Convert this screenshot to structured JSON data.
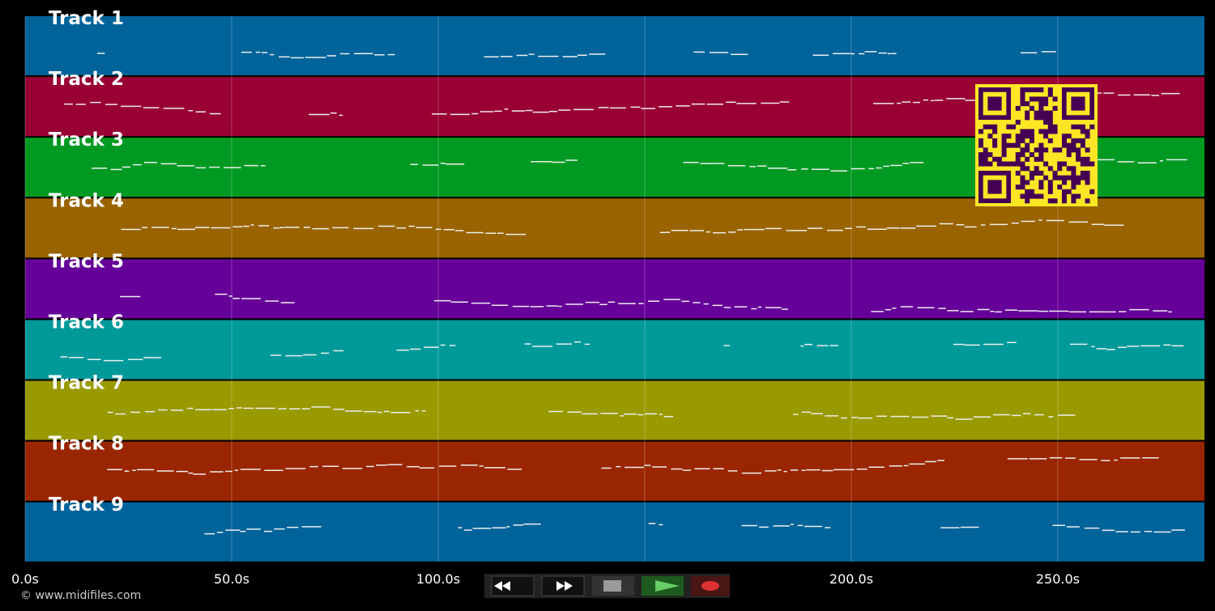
{
  "tracks": [
    {
      "label": "Track 1",
      "color": "#00639a"
    },
    {
      "label": "Track 2",
      "color": "#990033"
    },
    {
      "label": "Track 3",
      "color": "#009a22"
    },
    {
      "label": "Track 4",
      "color": "#996300"
    },
    {
      "label": "Track 5",
      "color": "#650099"
    },
    {
      "label": "Track 6",
      "color": "#009999"
    },
    {
      "label": "Track 7",
      "color": "#999900"
    },
    {
      "label": "Track 8",
      "color": "#992600"
    },
    {
      "label": "Track 9",
      "color": "#00639a"
    }
  ],
  "timeline": {
    "xlim": [
      0,
      285.5
    ],
    "ticks": [
      {
        "value": 0,
        "label": "0.0s"
      },
      {
        "value": 50,
        "label": "50.0s"
      },
      {
        "value": 100,
        "label": "100.0s"
      },
      {
        "value": 150,
        "label": "150.0s"
      },
      {
        "value": 200,
        "label": "200.0s"
      },
      {
        "value": 250,
        "label": "250.0s"
      }
    ]
  },
  "footer": "© www.midifiles.com"
}
